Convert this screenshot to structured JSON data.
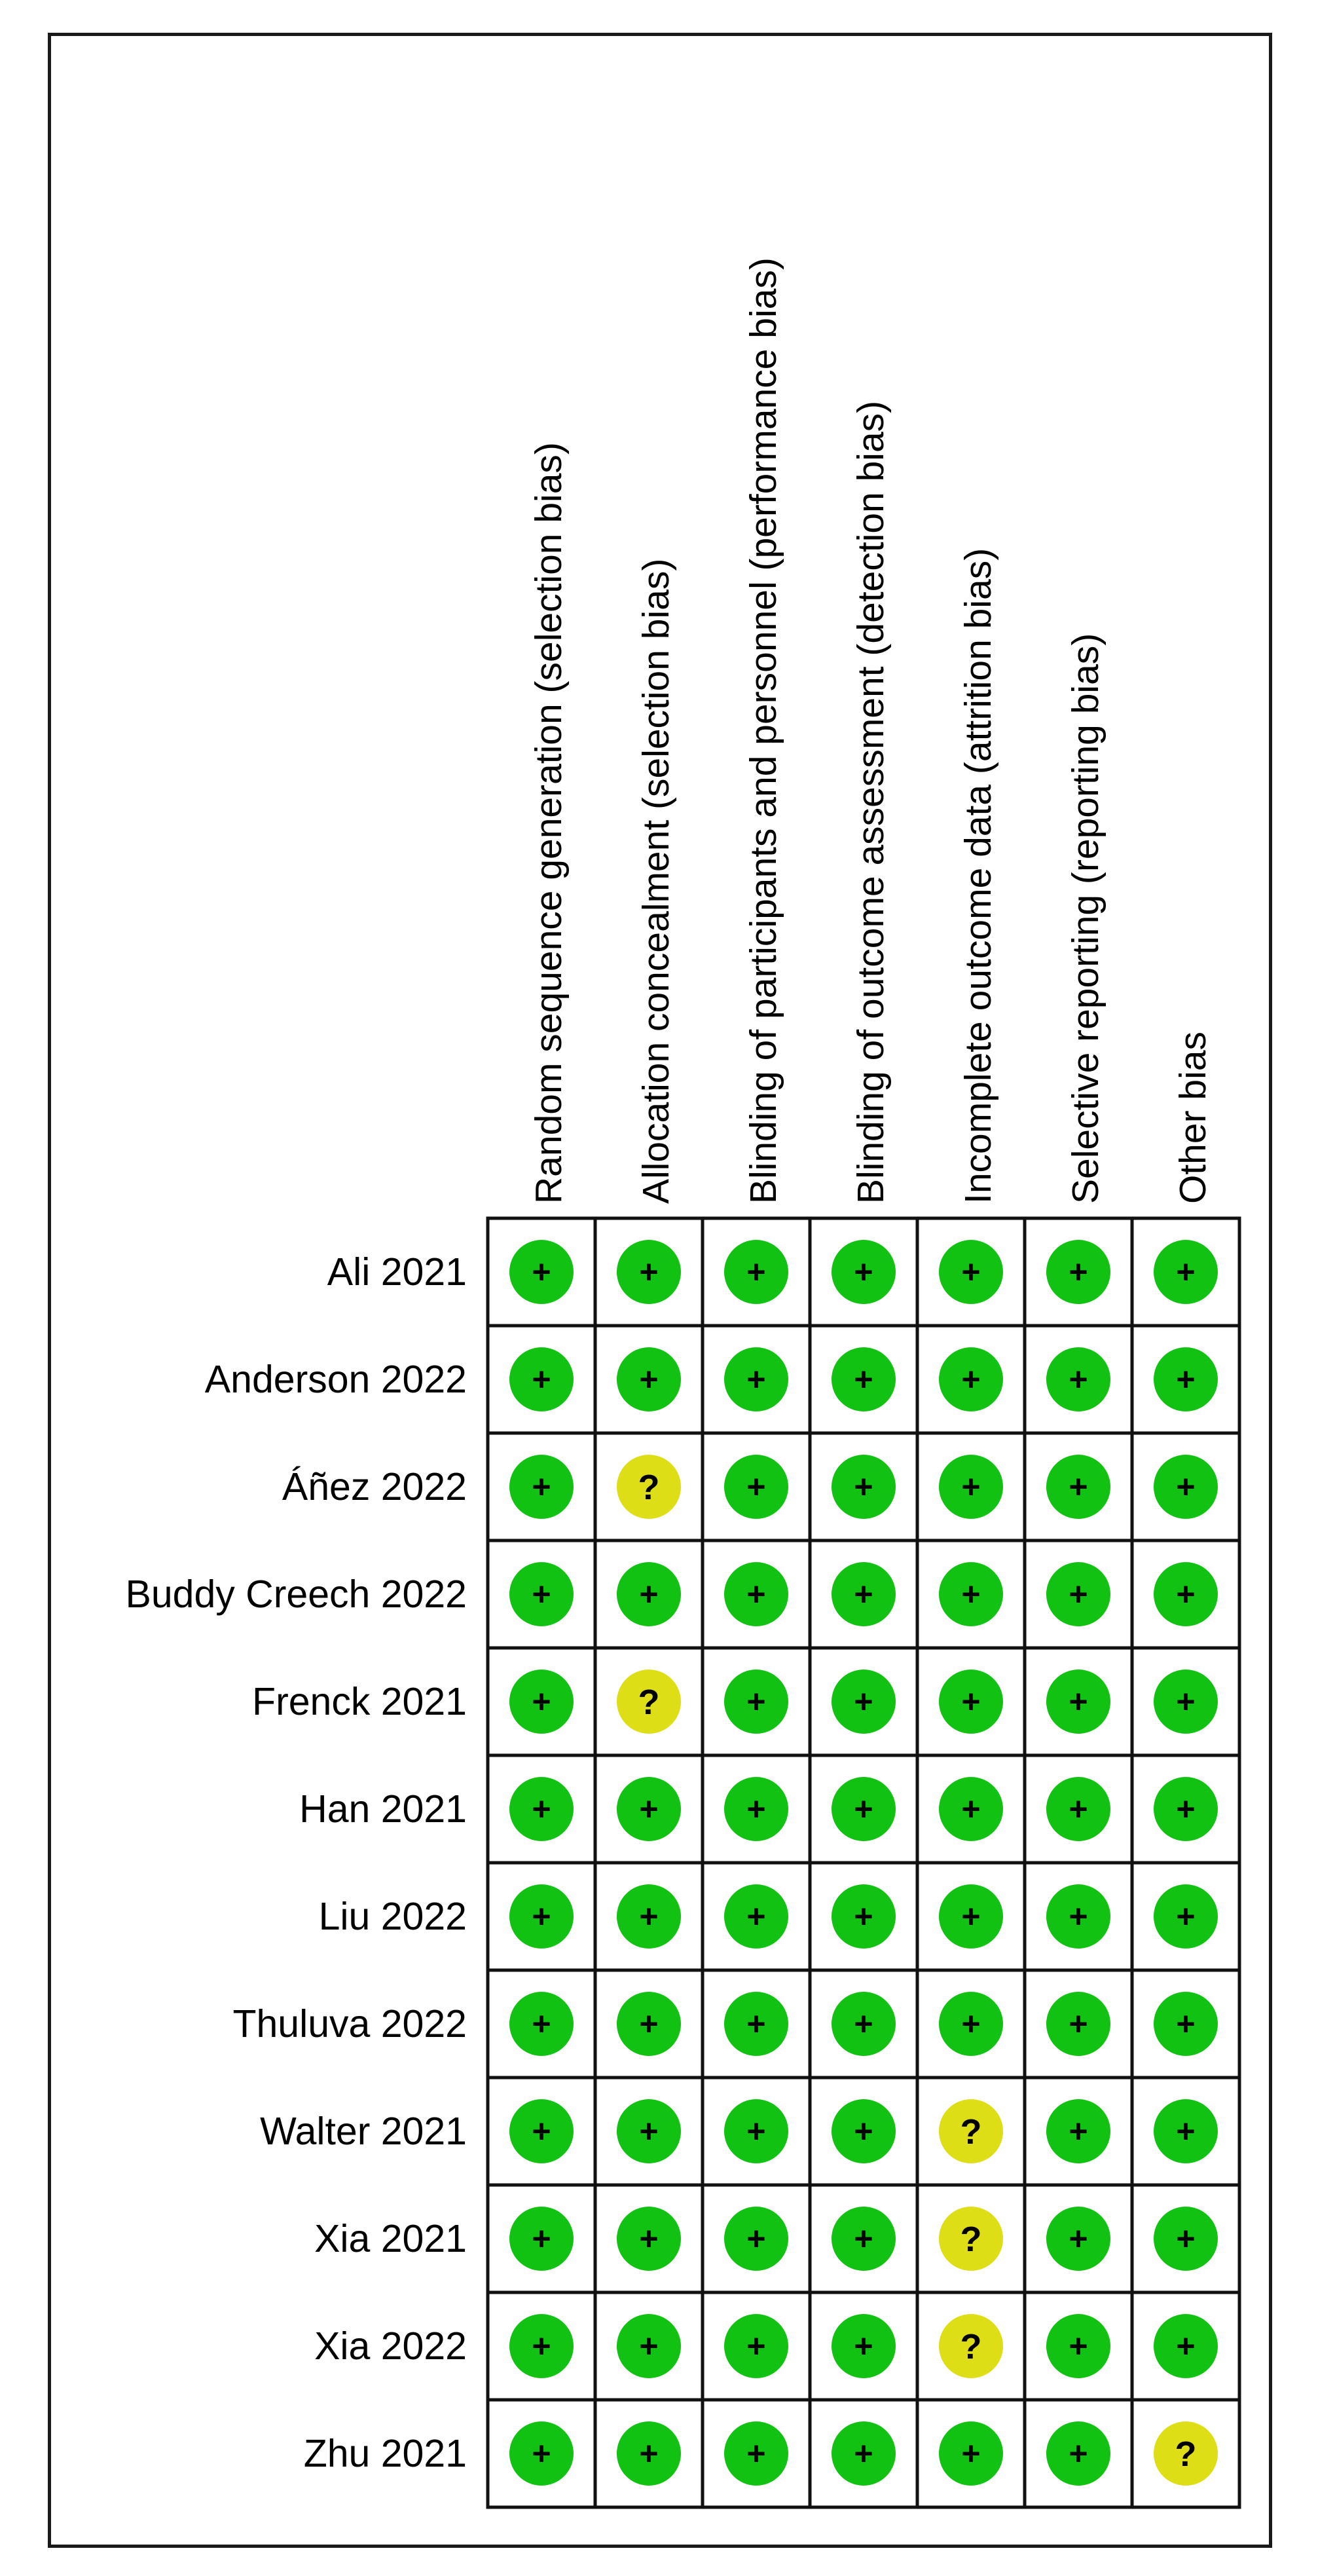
{
  "chart_data": {
    "type": "table",
    "title": "",
    "columns": [
      "Random sequence generation (selection bias)",
      "Allocation concealment (selection bias)",
      "Blinding of participants and personnel (performance bias)",
      "Blinding of outcome assessment (detection bias)",
      "Incomplete outcome data (attrition bias)",
      "Selective reporting (reporting bias)",
      "Other bias"
    ],
    "rows": [
      {
        "study": "Ali 2021",
        "ratings": [
          "+",
          "+",
          "+",
          "+",
          "+",
          "+",
          "+"
        ]
      },
      {
        "study": "Anderson 2022",
        "ratings": [
          "+",
          "+",
          "+",
          "+",
          "+",
          "+",
          "+"
        ]
      },
      {
        "study": "Áñez 2022",
        "ratings": [
          "+",
          "?",
          "+",
          "+",
          "+",
          "+",
          "+"
        ]
      },
      {
        "study": "Buddy Creech 2022",
        "ratings": [
          "+",
          "+",
          "+",
          "+",
          "+",
          "+",
          "+"
        ]
      },
      {
        "study": "Frenck 2021",
        "ratings": [
          "+",
          "?",
          "+",
          "+",
          "+",
          "+",
          "+"
        ]
      },
      {
        "study": "Han 2021",
        "ratings": [
          "+",
          "+",
          "+",
          "+",
          "+",
          "+",
          "+"
        ]
      },
      {
        "study": "Liu 2022",
        "ratings": [
          "+",
          "+",
          "+",
          "+",
          "+",
          "+",
          "+"
        ]
      },
      {
        "study": "Thuluva 2022",
        "ratings": [
          "+",
          "+",
          "+",
          "+",
          "+",
          "+",
          "+"
        ]
      },
      {
        "study": "Walter 2021",
        "ratings": [
          "+",
          "+",
          "+",
          "+",
          "?",
          "+",
          "+"
        ]
      },
      {
        "study": "Xia 2021",
        "ratings": [
          "+",
          "+",
          "+",
          "+",
          "?",
          "+",
          "+"
        ]
      },
      {
        "study": "Xia 2022",
        "ratings": [
          "+",
          "+",
          "+",
          "+",
          "?",
          "+",
          "+"
        ]
      },
      {
        "study": "Zhu 2021",
        "ratings": [
          "+",
          "+",
          "+",
          "+",
          "+",
          "+",
          "?"
        ]
      }
    ],
    "rating_colors": {
      "+": "#12c212",
      "?": "#dede16"
    }
  }
}
